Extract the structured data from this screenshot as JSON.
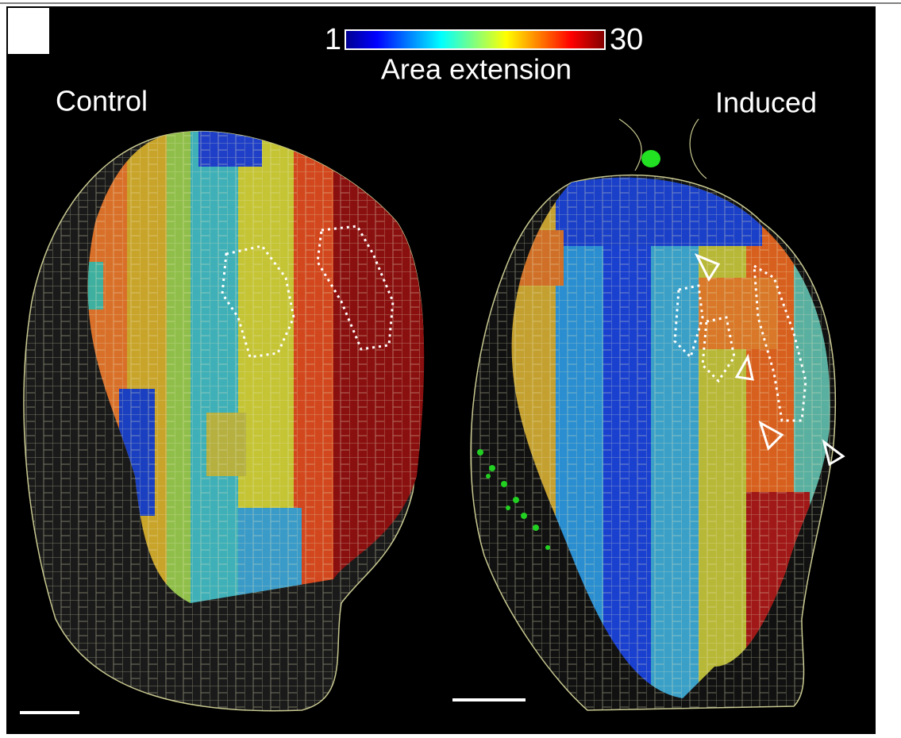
{
  "colorbar": {
    "min": "1",
    "max": "30",
    "label": "Area extension"
  },
  "panels": [
    {
      "label": "Control"
    },
    {
      "label": "Induced"
    }
  ]
}
